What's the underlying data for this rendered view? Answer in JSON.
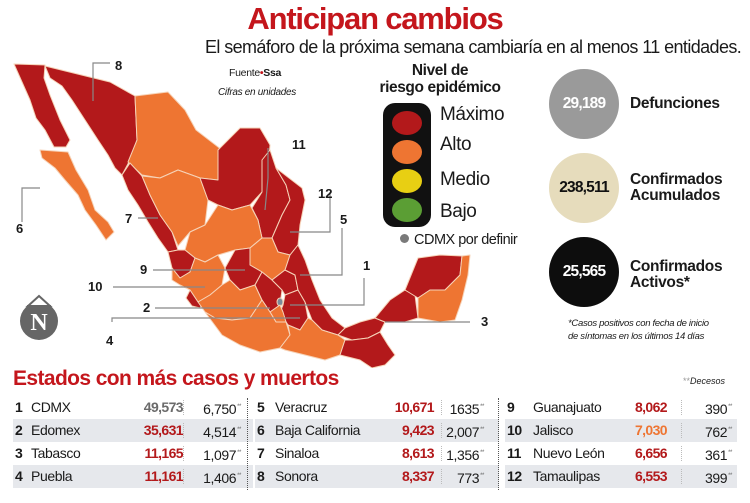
{
  "header": {
    "title": "Anticipan cambios",
    "subtitle": "El semáforo de la próxima semana cambiaría en al menos 11 entidades."
  },
  "source": {
    "label": "Fuente",
    "separator": "•",
    "name": "Ssa",
    "note": "Cifras en unidades"
  },
  "legend": {
    "title_line1": "Nivel de",
    "title_line2": "riesgo epidémico",
    "levels": [
      {
        "label": "Máximo",
        "color": "#b3191b"
      },
      {
        "label": "Alto",
        "color": "#ee7532"
      },
      {
        "label": "Medio",
        "color": "#e8cf13"
      },
      {
        "label": "Bajo",
        "color": "#5b9e34"
      }
    ],
    "cdmx_note": "CDMX por definir",
    "cdmx_color": "#7a7a7a"
  },
  "stats": [
    {
      "value": "29,189",
      "label_line1": "Defunciones",
      "label_line2": "",
      "bg": "#9a9a9a",
      "fg": "#ffffff"
    },
    {
      "value": "238,511",
      "label_line1": "Confirmados",
      "label_line2": "Acumulados",
      "bg": "#e6dcbc",
      "fg": "#111111"
    },
    {
      "value": "25,565",
      "label_line1": "Confirmados",
      "label_line2": "Activos*",
      "bg": "#0d0d0d",
      "fg": "#ffffff"
    }
  ],
  "footnote": {
    "line1": "*Casos positivos con fecha de inicio",
    "line2": "de síntomas en los últimos 14 días"
  },
  "map": {
    "callouts": [
      "1",
      "2",
      "3",
      "4",
      "5",
      "6",
      "7",
      "8",
      "9",
      "10",
      "11",
      "12"
    ],
    "colors": {
      "maximo": "#b3191b",
      "alto": "#ee7532",
      "border": "#f6d3b8"
    }
  },
  "logo": {
    "letter": "N"
  },
  "table": {
    "title": "Estados con más casos y muertos",
    "deaths_note_marker": "**",
    "deaths_note": "Decesos",
    "deaths_marker": "**",
    "columns": [
      [
        {
          "rank": "1",
          "state": "CDMX",
          "cases": "49,573",
          "deaths": "6,750",
          "cases_color": "#6b6b6b"
        },
        {
          "rank": "2",
          "state": "Edomex",
          "cases": "35,631",
          "deaths": "4,514",
          "cases_color": "#b3191b"
        },
        {
          "rank": "3",
          "state": "Tabasco",
          "cases": "11,165",
          "deaths": "1,097",
          "cases_color": "#b3191b"
        },
        {
          "rank": "4",
          "state": "Puebla",
          "cases": "11,161",
          "deaths": "1,406",
          "cases_color": "#b3191b"
        }
      ],
      [
        {
          "rank": "5",
          "state": "Veracruz",
          "cases": "10,671",
          "deaths": "1635",
          "cases_color": "#b3191b"
        },
        {
          "rank": "6",
          "state": "Baja California",
          "cases": "9,423",
          "deaths": "2,007",
          "cases_color": "#b3191b"
        },
        {
          "rank": "7",
          "state": "Sinaloa",
          "cases": "8,613",
          "deaths": "1,356",
          "cases_color": "#b3191b"
        },
        {
          "rank": "8",
          "state": "Sonora",
          "cases": "8,337",
          "deaths": "773",
          "cases_color": "#b3191b"
        }
      ],
      [
        {
          "rank": "9",
          "state": "Guanajuato",
          "cases": "8,062",
          "deaths": "390",
          "cases_color": "#b3191b"
        },
        {
          "rank": "10",
          "state": "Jalisco",
          "cases": "7,030",
          "deaths": "762",
          "cases_color": "#ee7532"
        },
        {
          "rank": "11",
          "state": "Nuevo León",
          "cases": "6,656",
          "deaths": "361",
          "cases_color": "#b3191b"
        },
        {
          "rank": "12",
          "state": "Tamaulipas",
          "cases": "6,553",
          "deaths": "399",
          "cases_color": "#b3191b"
        }
      ]
    ]
  }
}
